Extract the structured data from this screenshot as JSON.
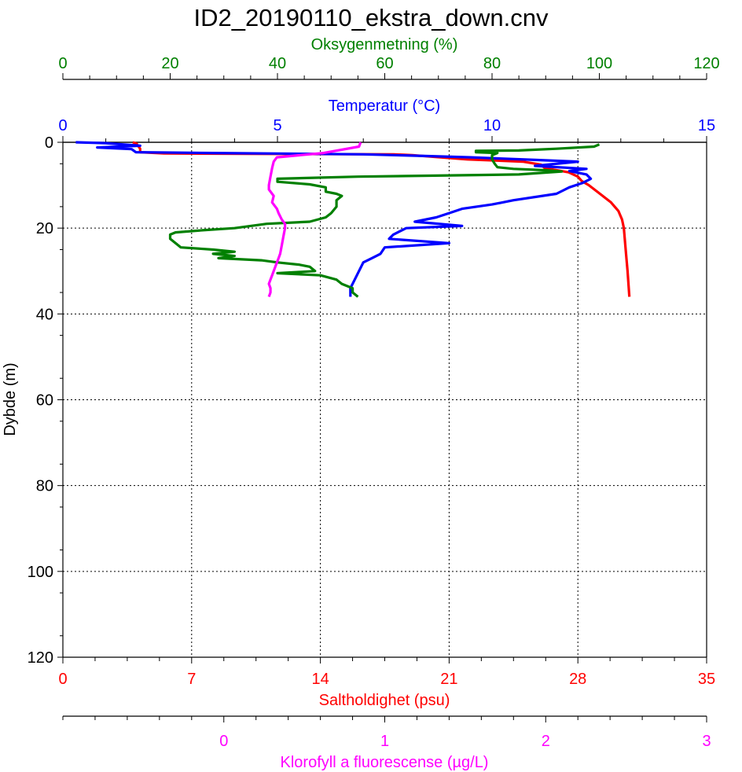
{
  "chart_data": {
    "type": "line",
    "title": "ID2_20190110_ekstra_down.cnv",
    "depth_axis": {
      "label": "Dybde (m)",
      "range": [
        0,
        120
      ],
      "ticks": [
        0,
        20,
        40,
        60,
        80,
        100,
        120
      ],
      "ticklabels": [
        "0",
        "20",
        "40",
        "60",
        "80",
        "100",
        "120"
      ],
      "inverted": true,
      "grid": true
    },
    "axes": {
      "oxygen": {
        "label": "Oksygenmetning (%)",
        "color": "#008000",
        "range": [
          0,
          120
        ],
        "ticks": [
          0,
          20,
          40,
          60,
          80,
          100,
          120
        ],
        "ticklabels": [
          "0",
          "20",
          "40",
          "60",
          "80",
          "100",
          "120"
        ],
        "position": "top"
      },
      "temperature": {
        "label": "Temperatur (°C)",
        "color": "#0000ff",
        "range": [
          0,
          15
        ],
        "ticks": [
          0,
          5,
          10,
          15
        ],
        "ticklabels": [
          "0",
          "5",
          "10",
          "15"
        ],
        "position": "top"
      },
      "salinity": {
        "label": "Saltholdighet (psu)",
        "color": "#ff0000",
        "range": [
          0,
          35
        ],
        "ticks": [
          0,
          7,
          14,
          21,
          28,
          35
        ],
        "ticklabels": [
          "0",
          "7",
          "14",
          "21",
          "28",
          "35"
        ],
        "position": "bottom",
        "grid": true
      },
      "chlorophyll": {
        "label": "Klorofyll a fluorescense (µg/L)",
        "color": "#ff00ff",
        "range": [
          -1,
          3
        ],
        "ticks": [
          0,
          1,
          2,
          3
        ],
        "ticklabels": [
          "0",
          "1",
          "2",
          "3"
        ],
        "position": "bottom"
      }
    },
    "series": [
      {
        "key": "salinity",
        "color": "#ff0000",
        "points": [
          [
            3.8,
            0
          ],
          [
            4.0,
            0.3
          ],
          [
            4.2,
            1.5
          ],
          [
            4.2,
            2.3
          ],
          [
            5.5,
            2.6
          ],
          [
            10.0,
            2.7
          ],
          [
            18.0,
            2.8
          ],
          [
            19.0,
            3.0
          ],
          [
            22.0,
            4.0
          ],
          [
            25.0,
            4.5
          ],
          [
            26.0,
            5.2
          ],
          [
            26.2,
            6.0
          ],
          [
            27.5,
            7.0
          ],
          [
            28.0,
            8.0
          ],
          [
            28.2,
            9.0
          ],
          [
            28.6,
            10.0
          ],
          [
            29.2,
            12.0
          ],
          [
            29.8,
            14.0
          ],
          [
            30.2,
            16.0
          ],
          [
            30.4,
            18.0
          ],
          [
            30.5,
            20.0
          ],
          [
            30.6,
            25.0
          ],
          [
            30.7,
            30.0
          ],
          [
            30.8,
            36.0
          ]
        ]
      },
      {
        "key": "temperature",
        "color": "#0000ff",
        "points": [
          [
            0.3,
            0
          ],
          [
            1.0,
            0.2
          ],
          [
            1.8,
            0.8
          ],
          [
            0.8,
            1.2
          ],
          [
            1.6,
            1.6
          ],
          [
            1.7,
            2.3
          ],
          [
            3.5,
            2.5
          ],
          [
            7.0,
            2.8
          ],
          [
            8.5,
            3.2
          ],
          [
            9.5,
            3.5
          ],
          [
            11.0,
            4.1
          ],
          [
            12.0,
            4.5
          ],
          [
            11.0,
            5.5
          ],
          [
            12.2,
            6.2
          ],
          [
            11.8,
            6.7
          ],
          [
            12.2,
            7.5
          ],
          [
            12.3,
            8.5
          ],
          [
            12.1,
            9.5
          ],
          [
            11.8,
            10.5
          ],
          [
            11.5,
            12.0
          ],
          [
            10.5,
            13.5
          ],
          [
            10.0,
            14.5
          ],
          [
            9.3,
            15.5
          ],
          [
            9.0,
            16.5
          ],
          [
            8.7,
            17.5
          ],
          [
            8.2,
            18.5
          ],
          [
            9.3,
            19.5
          ],
          [
            8.0,
            20.0
          ],
          [
            7.7,
            21.5
          ],
          [
            7.6,
            22.5
          ],
          [
            9.0,
            23.5
          ],
          [
            7.5,
            24.5
          ],
          [
            7.4,
            26.0
          ],
          [
            7.2,
            27.0
          ],
          [
            7.0,
            28.0
          ],
          [
            6.9,
            30.0
          ],
          [
            6.8,
            32.0
          ],
          [
            6.7,
            34.0
          ],
          [
            6.7,
            36.0
          ]
        ]
      },
      {
        "key": "oxygen",
        "color": "#008000",
        "points": [
          [
            100.0,
            0.5
          ],
          [
            99.0,
            1.0
          ],
          [
            92.0,
            1.5
          ],
          [
            85.0,
            1.9
          ],
          [
            77.0,
            2.0
          ],
          [
            77.0,
            2.3
          ],
          [
            81.0,
            2.5
          ],
          [
            80.0,
            3.0
          ],
          [
            80.0,
            4.0
          ],
          [
            80.5,
            5.0
          ],
          [
            81.0,
            5.8
          ],
          [
            84.0,
            6.2
          ],
          [
            90.0,
            6.5
          ],
          [
            93.0,
            6.8
          ],
          [
            85.0,
            7.5
          ],
          [
            55.0,
            8.0
          ],
          [
            40.0,
            8.5
          ],
          [
            40.0,
            9.2
          ],
          [
            46.0,
            9.8
          ],
          [
            49.0,
            10.5
          ],
          [
            49.0,
            11.5
          ],
          [
            51.0,
            12.0
          ],
          [
            52.0,
            12.5
          ],
          [
            51.0,
            13.5
          ],
          [
            51.0,
            15.0
          ],
          [
            50.0,
            16.5
          ],
          [
            49.0,
            17.5
          ],
          [
            46.0,
            18.5
          ],
          [
            38.0,
            19.0
          ],
          [
            35.0,
            19.5
          ],
          [
            32.0,
            20.0
          ],
          [
            26.0,
            20.5
          ],
          [
            21.0,
            21.0
          ],
          [
            20.0,
            21.5
          ],
          [
            20.0,
            22.5
          ],
          [
            21.0,
            23.5
          ],
          [
            22.0,
            24.5
          ],
          [
            28.0,
            25.0
          ],
          [
            32.0,
            25.5
          ],
          [
            28.0,
            26.0
          ],
          [
            32.0,
            26.5
          ],
          [
            29.0,
            27.0
          ],
          [
            37.0,
            27.5
          ],
          [
            40.0,
            28.0
          ],
          [
            44.0,
            28.5
          ],
          [
            46.0,
            29.0
          ],
          [
            47.0,
            30.0
          ],
          [
            40.0,
            30.5
          ],
          [
            48.0,
            31.0
          ],
          [
            51.0,
            32.0
          ],
          [
            52.0,
            33.0
          ],
          [
            54.0,
            34.0
          ],
          [
            54.0,
            35.0
          ],
          [
            55.0,
            36.0
          ]
        ]
      },
      {
        "key": "chlorophyll",
        "color": "#ff00ff",
        "points": [
          [
            0.85,
            0
          ],
          [
            0.84,
            1.0
          ],
          [
            0.62,
            2.5
          ],
          [
            0.33,
            3.5
          ],
          [
            0.31,
            4.5
          ],
          [
            0.3,
            6.0
          ],
          [
            0.29,
            8.0
          ],
          [
            0.28,
            10.0
          ],
          [
            0.28,
            11.0
          ],
          [
            0.31,
            12.5
          ],
          [
            0.3,
            14.0
          ],
          [
            0.33,
            15.5
          ],
          [
            0.34,
            16.5
          ],
          [
            0.36,
            18.0
          ],
          [
            0.38,
            19.0
          ],
          [
            0.38,
            20.0
          ],
          [
            0.37,
            22.0
          ],
          [
            0.36,
            24.0
          ],
          [
            0.35,
            26.0
          ],
          [
            0.34,
            27.0
          ],
          [
            0.33,
            28.0
          ],
          [
            0.31,
            30.0
          ],
          [
            0.3,
            31.0
          ],
          [
            0.29,
            32.0
          ],
          [
            0.28,
            33.0
          ],
          [
            0.29,
            34.0
          ],
          [
            0.29,
            35.0
          ],
          [
            0.28,
            36.0
          ]
        ]
      }
    ]
  }
}
